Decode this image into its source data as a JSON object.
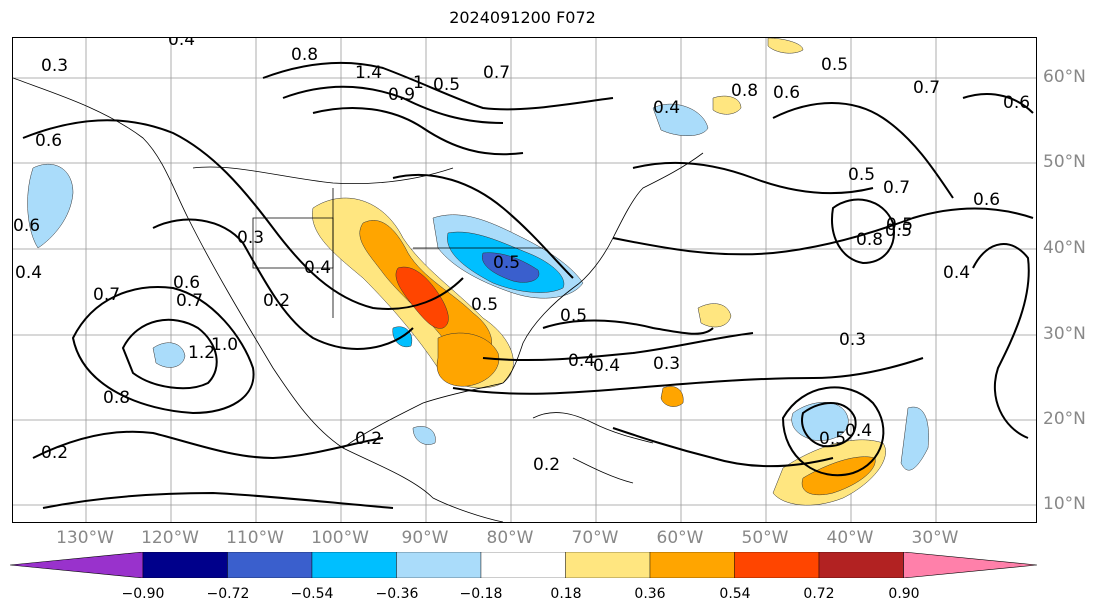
{
  "title": "2024091200 F072",
  "lon_labels": [
    "130°W",
    "120°W",
    "110°W",
    "100°W",
    "90°W",
    "80°W",
    "70°W",
    "60°W",
    "50°W",
    "40°W",
    "30°W"
  ],
  "lat_labels": [
    "60°N",
    "50°N",
    "40°N",
    "30°N",
    "20°N",
    "10°N"
  ],
  "colorbar": {
    "ticks": [
      "−0.90",
      "−0.72",
      "−0.54",
      "−0.36",
      "−0.18",
      "0.18",
      "0.36",
      "0.54",
      "0.72",
      "0.90"
    ],
    "colors": [
      "#9932cc",
      "#00008b",
      "#3a5fcd",
      "#00bfff",
      "#aadcfa",
      "#ffffff",
      "#ffe680",
      "#ffa500",
      "#ff4500",
      "#b22222",
      "#ff80aa"
    ]
  },
  "contour_labels": [
    "0.4",
    "0.3",
    "0.8",
    "1.4",
    "0.5",
    "0.7",
    "0.9",
    "1",
    "0.8",
    "0.6",
    "0.4",
    "0.5",
    "0.7",
    "0.6",
    "0.6",
    "0.5",
    "0.7",
    "0.6",
    "0.8",
    "0.5",
    "0.4",
    "0.7",
    "0.6",
    "0.3",
    "0.4",
    "0.2",
    "0.6",
    "0.5",
    "0.4",
    "0.7",
    "1.2",
    "1.0",
    "0.8",
    "0.2",
    "0.5",
    "0.3",
    "0.4",
    "0.5",
    "0.2",
    "0.2",
    "0.5",
    "0.4",
    "0.3",
    "0.5",
    "0.4"
  ]
}
